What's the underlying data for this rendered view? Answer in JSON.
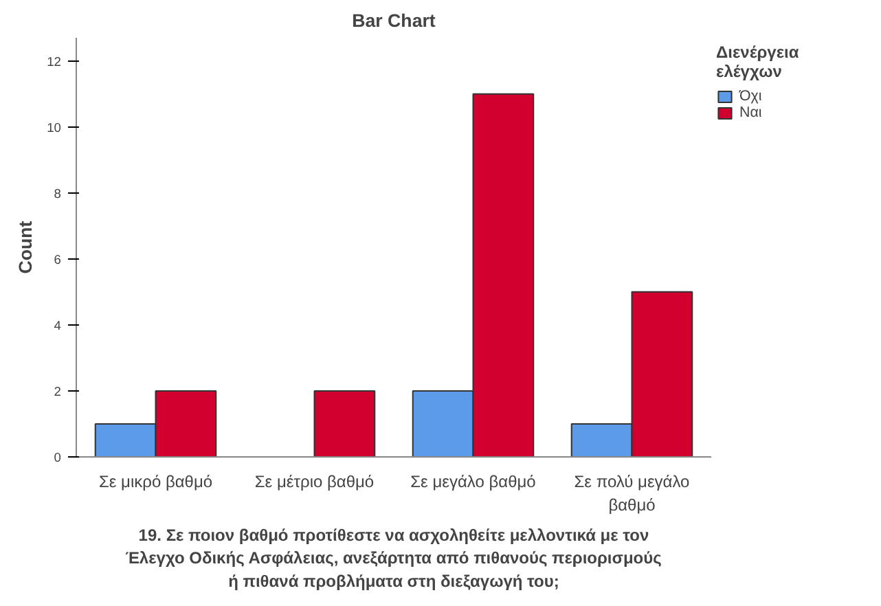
{
  "chart_data": {
    "type": "bar",
    "title": "Bar Chart",
    "xlabel": "19. Σε ποιον βαθμό προτίθεστε να ασχοληθείτε μελλοντικά με τον\nΈλεγχο Οδικής Ασφάλειας, ανεξάρτητα από πιθανούς περιορισμούς\nή πιθανά προβλήματα στη διεξαγωγή του;",
    "ylabel": "Count",
    "legend_title": "Διενέργεια ελέγχων",
    "categories": [
      "Σε μικρό βαθμό",
      "Σε μέτριο βαθμό",
      "Σε μεγάλο βαθμό",
      "Σε πολύ μεγάλο βαθμό"
    ],
    "series": [
      {
        "name": "Όχι",
        "color": "#5b9be8",
        "values": [
          1,
          null,
          2,
          1
        ]
      },
      {
        "name": "Ναι",
        "color": "#d2002e",
        "values": [
          2,
          2,
          11,
          5
        ]
      }
    ],
    "ylim": [
      0,
      12.7
    ],
    "yticks": [
      0,
      2,
      4,
      6,
      8,
      10,
      12
    ],
    "grid": false,
    "legend": "top right"
  }
}
